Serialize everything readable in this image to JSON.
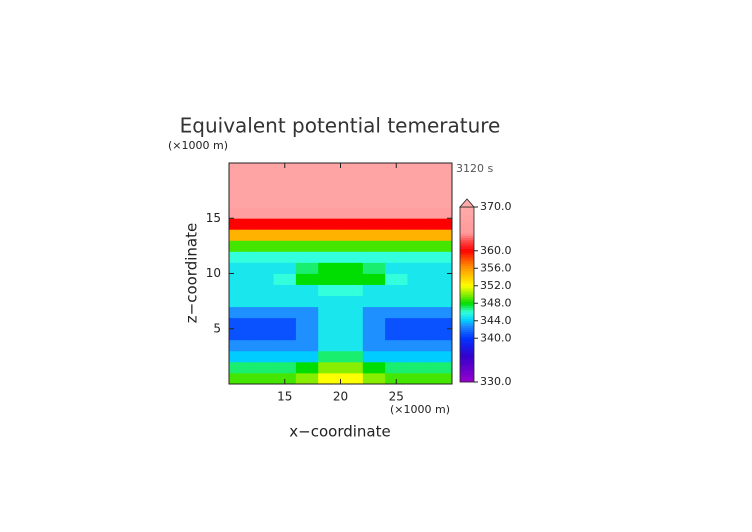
{
  "chart_data": {
    "type": "contour",
    "title": "Equivalent potential temerature",
    "time_label": "3120 s",
    "x_label": "x−coordinate",
    "y_label": "z−coordinate",
    "x_unit": "(×1000 m)",
    "y_unit": "(×1000 m)",
    "xlim": [
      10,
      30
    ],
    "ylim": [
      0,
      20
    ],
    "xticks": [
      15,
      20,
      25
    ],
    "yticks": [
      5,
      10,
      15
    ],
    "x": [
      11,
      13,
      15,
      17,
      19,
      21,
      23,
      25,
      27,
      29
    ],
    "y": [
      0.5,
      1.5,
      2.5,
      3.5,
      4.5,
      5.5,
      6.5,
      7.5,
      8.5,
      9.5,
      10.5,
      11.5,
      12.5,
      13.5,
      14.5,
      15.5,
      16.5,
      17.5,
      18.5,
      19.5
    ],
    "values": [
      [
        349,
        349,
        349,
        350,
        352,
        352,
        350,
        349,
        349,
        349
      ],
      [
        347,
        347,
        347,
        348,
        350,
        350,
        348,
        347,
        347,
        347
      ],
      [
        344,
        344,
        344,
        344,
        347,
        347,
        344,
        344,
        344,
        344
      ],
      [
        343,
        343,
        343,
        343,
        345,
        345,
        343,
        343,
        343,
        343
      ],
      [
        341,
        341,
        341,
        343,
        345,
        345,
        343,
        341,
        341,
        341
      ],
      [
        341,
        341,
        341,
        343,
        345,
        345,
        343,
        341,
        341,
        341
      ],
      [
        343,
        343,
        343,
        343,
        345,
        345,
        343,
        343,
        343,
        343
      ],
      [
        345,
        345,
        345,
        345,
        345,
        345,
        345,
        345,
        345,
        345
      ],
      [
        345,
        345,
        345,
        345,
        346,
        346,
        345,
        345,
        345,
        345
      ],
      [
        345,
        345,
        346,
        348,
        348,
        348,
        348,
        346,
        345,
        345
      ],
      [
        345,
        345,
        345,
        347,
        348,
        348,
        347,
        345,
        345,
        345
      ],
      [
        346,
        346,
        346,
        346,
        346,
        346,
        346,
        346,
        346,
        346
      ],
      [
        349,
        349,
        349,
        349,
        349,
        349,
        349,
        349,
        349,
        349
      ],
      [
        355,
        355,
        355,
        355,
        355,
        355,
        355,
        355,
        355,
        355
      ],
      [
        360,
        360,
        360,
        360,
        360,
        360,
        360,
        360,
        360,
        360
      ],
      [
        366,
        366,
        366,
        366,
        366,
        366,
        366,
        366,
        366,
        366
      ],
      [
        368,
        368,
        368,
        368,
        368,
        368,
        368,
        368,
        368,
        368
      ],
      [
        368,
        368,
        368,
        368,
        368,
        368,
        368,
        368,
        368,
        368
      ],
      [
        368,
        368,
        368,
        368,
        368,
        368,
        368,
        368,
        368,
        368
      ],
      [
        368,
        368,
        368,
        368,
        368,
        368,
        368,
        368,
        368,
        368
      ]
    ],
    "clim": [
      330,
      370
    ],
    "cticks": [
      {
        "value": 330,
        "label": "330.0"
      },
      {
        "value": 340,
        "label": "340.0"
      },
      {
        "value": 344,
        "label": "344.0"
      },
      {
        "value": 348,
        "label": "348.0"
      },
      {
        "value": 352,
        "label": "352.0"
      },
      {
        "value": 356,
        "label": "356.0"
      },
      {
        "value": 360,
        "label": "360.0"
      },
      {
        "value": 370,
        "label": "370.0"
      }
    ],
    "colorscale": [
      [
        330,
        "#9900cc"
      ],
      [
        336,
        "#3300cc"
      ],
      [
        340,
        "#0033ff"
      ],
      [
        343,
        "#1e90ff"
      ],
      [
        344,
        "#00ccff"
      ],
      [
        346,
        "#33ffdd"
      ],
      [
        348,
        "#00dd00"
      ],
      [
        350,
        "#88ee00"
      ],
      [
        352,
        "#ffff00"
      ],
      [
        354,
        "#ffcc00"
      ],
      [
        356,
        "#ff9900"
      ],
      [
        358,
        "#ff5500"
      ],
      [
        360,
        "#ff0000"
      ],
      [
        362,
        "#ff4040"
      ],
      [
        364,
        "#ff9999"
      ],
      [
        370,
        "#ffaaaa"
      ]
    ],
    "extend_color": "#ffaaaa"
  }
}
